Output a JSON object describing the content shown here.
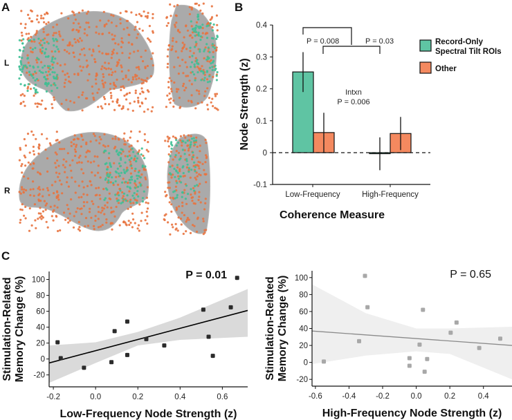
{
  "panels": {
    "a": "A",
    "b": "B",
    "c": "C"
  },
  "panel_a": {
    "hemisphere_labels": [
      "L",
      "R"
    ],
    "colors": {
      "roi": "#3fbf95",
      "other": "#e8733f",
      "brain": "#8e8e8e"
    }
  },
  "chart_data": [
    {
      "type": "bar",
      "ylabel": "Node Strength (z)",
      "xlabel": "Coherence Measure",
      "categories": [
        "Low-Frequency",
        "High-Frequency"
      ],
      "ylim": [
        -0.1,
        0.4
      ],
      "yticks": [
        -0.1,
        0,
        0.1,
        0.2,
        0.3,
        0.4
      ],
      "ytick_labels": [
        "-0.1",
        "0",
        "0.1",
        "0.2",
        "0.3",
        "0.4"
      ],
      "series": [
        {
          "name": "Record-Only Spectral Tilt ROIs",
          "color": "#5fc4a3",
          "values": [
            0.253,
            -0.003
          ],
          "err_low": [
            0.19,
            -0.055
          ],
          "err_high": [
            0.315,
            0.048
          ]
        },
        {
          "name": "Other",
          "color": "#f4895f",
          "values": [
            0.063,
            0.06
          ],
          "err_low": [
            0.0,
            0.008
          ],
          "err_high": [
            0.125,
            0.112
          ]
        }
      ],
      "legend": {
        "entries": [
          "Record-Only",
          "Spectral Tilt ROIs",
          "Other"
        ],
        "placement": "right"
      },
      "annotations": {
        "p1": "P = 0.008",
        "p2": "P = 0.03",
        "intxn": "Intxn",
        "intxn_p": "P = 0.006"
      }
    },
    {
      "type": "scatter",
      "p_label": "P = 0.01",
      "ylabel": [
        "Stimulation-Related",
        "Memory Change (%)"
      ],
      "xlabel": "Low-Frequency Node Strength (z)",
      "xlim": [
        -0.22,
        0.72
      ],
      "ylim": [
        -35,
        110
      ],
      "xticks": [
        "-0.2",
        "0.0",
        "0.2",
        "0.4",
        "0.6"
      ],
      "yticks": [
        "-20",
        "0",
        "20",
        "40",
        "60",
        "80",
        "100"
      ],
      "color": "#2b2b2b",
      "line_color": "#000000",
      "points": [
        [
          -0.18,
          21
        ],
        [
          -0.165,
          1
        ],
        [
          -0.055,
          -11
        ],
        [
          0.075,
          -4
        ],
        [
          0.09,
          35
        ],
        [
          0.15,
          47
        ],
        [
          0.15,
          5
        ],
        [
          0.24,
          25
        ],
        [
          0.325,
          17
        ],
        [
          0.51,
          62
        ],
        [
          0.535,
          28
        ],
        [
          0.555,
          4
        ],
        [
          0.64,
          65
        ],
        [
          0.67,
          102
        ]
      ],
      "fit": [
        [
          -0.22,
          -5
        ],
        [
          0.72,
          61
        ]
      ],
      "ci": {
        "x": [
          -0.22,
          0.0,
          0.2,
          0.4,
          0.72
        ],
        "low": [
          -30,
          -5,
          17,
          24,
          28
        ],
        "high": [
          17,
          21,
          34,
          52,
          88
        ]
      }
    },
    {
      "type": "scatter",
      "p_label": "P = 0.65",
      "ylabel": [
        "Stimulation-Related",
        "Memory Change (%)"
      ],
      "xlabel": "High-Frequency Node Strength (z)",
      "xlim": [
        -0.62,
        0.57
      ],
      "ylim": [
        -28,
        108
      ],
      "xticks": [
        "-0.6",
        "-0.4",
        "-0.2",
        "0.0",
        "0.2",
        "0.4"
      ],
      "yticks": [
        "-20",
        "0",
        "20",
        "40",
        "60",
        "80",
        "100"
      ],
      "color": "#a8a8a8",
      "line_color": "#8a8a8a",
      "points": [
        [
          -0.55,
          1
        ],
        [
          -0.34,
          25
        ],
        [
          -0.305,
          102
        ],
        [
          -0.29,
          65
        ],
        [
          -0.04,
          5
        ],
        [
          -0.04,
          -4
        ],
        [
          0.02,
          21
        ],
        [
          0.04,
          62
        ],
        [
          0.05,
          -11
        ],
        [
          0.065,
          4
        ],
        [
          0.205,
          35
        ],
        [
          0.24,
          47
        ],
        [
          0.375,
          17
        ],
        [
          0.5,
          28
        ]
      ],
      "fit": [
        [
          -0.62,
          37
        ],
        [
          0.57,
          20
        ]
      ],
      "ci": {
        "x": [
          -0.62,
          -0.3,
          0.0,
          0.2,
          0.57
        ],
        "low": [
          -2,
          8,
          13,
          10,
          -20
        ],
        "high": [
          92,
          58,
          40,
          40,
          42
        ]
      }
    }
  ]
}
